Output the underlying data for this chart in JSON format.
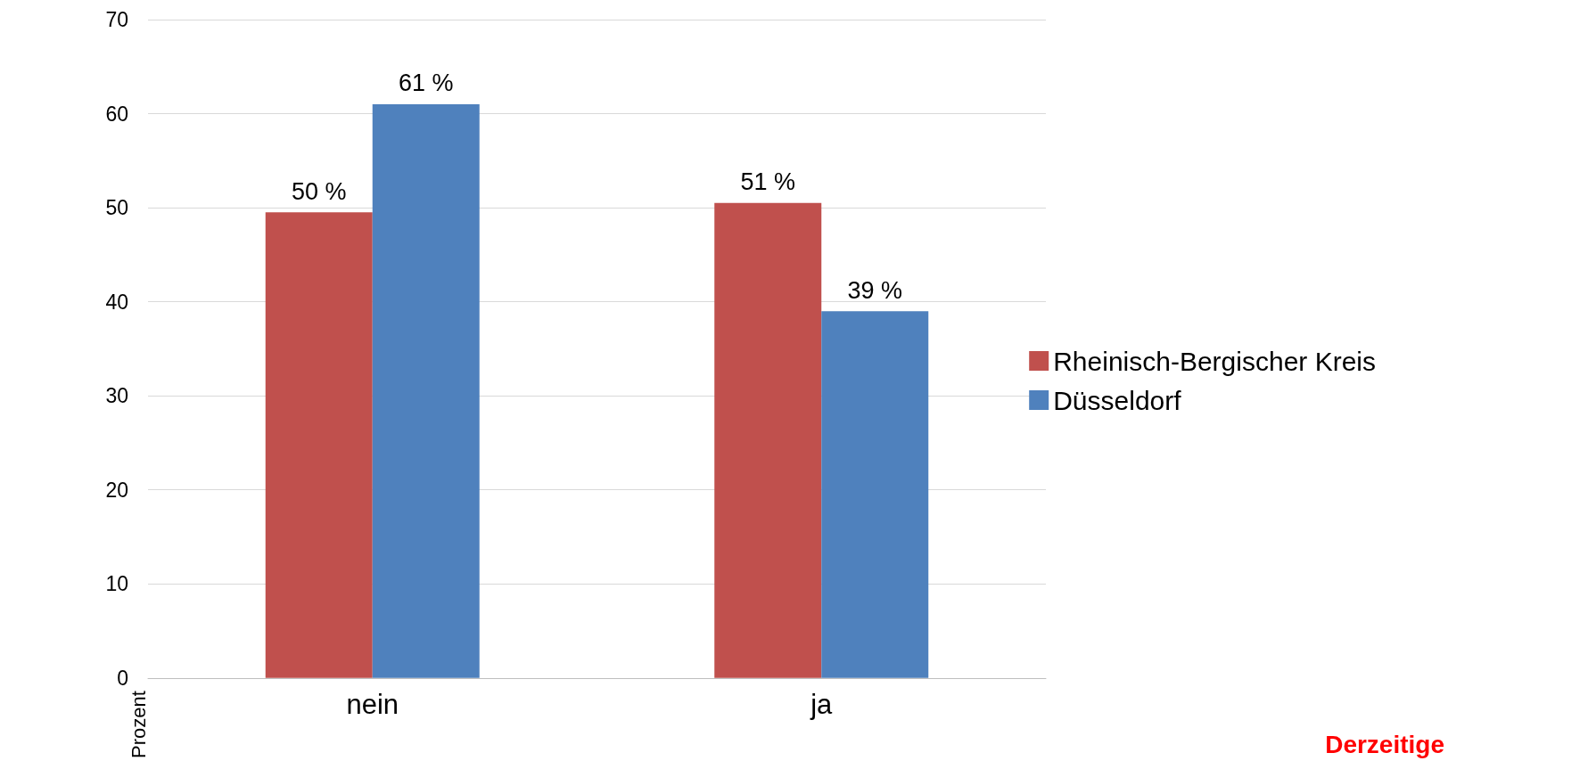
{
  "chart_data": {
    "type": "bar",
    "ylabel": "Prozent",
    "categories": [
      "nein",
      "ja"
    ],
    "series": [
      {
        "name": "Rheinisch-Bergischer Kreis",
        "color": "#c0504d",
        "values": [
          49.5,
          50.5
        ],
        "value_labels": [
          "50 %",
          "51 %"
        ]
      },
      {
        "name": "Düsseldorf",
        "color": "#4f81bd",
        "values": [
          61,
          39
        ],
        "value_labels": [
          "61 %",
          "39 %"
        ]
      }
    ],
    "ylim": [
      0,
      70
    ],
    "yticks": [
      0,
      10,
      20,
      30,
      40,
      50,
      60,
      70
    ],
    "grid": "y",
    "legend": "right",
    "annotations": [
      "Derzeitige"
    ]
  }
}
